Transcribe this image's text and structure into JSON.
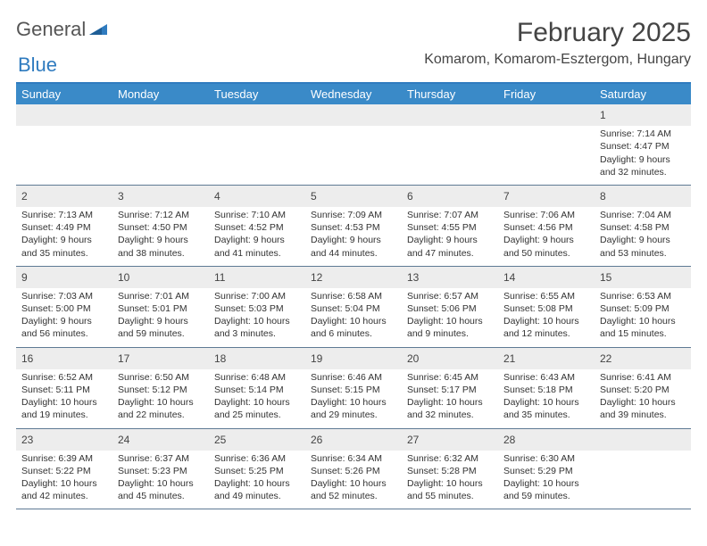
{
  "logo": {
    "general": "General",
    "blue": "Blue"
  },
  "title": "February 2025",
  "location": "Komarom, Komarom-Esztergom, Hungary",
  "colors": {
    "header_bg": "#3a8ac8",
    "header_text": "#ffffff",
    "daynum_bg": "#ededed",
    "rule": "#5e7a94",
    "accent": "#2f7bbf",
    "body_text": "#333333"
  },
  "day_headers": [
    "Sunday",
    "Monday",
    "Tuesday",
    "Wednesday",
    "Thursday",
    "Friday",
    "Saturday"
  ],
  "weeks": [
    [
      null,
      null,
      null,
      null,
      null,
      null,
      {
        "n": "1",
        "sr": "Sunrise: 7:14 AM",
        "ss": "Sunset: 4:47 PM",
        "dl": "Daylight: 9 hours and 32 minutes."
      }
    ],
    [
      {
        "n": "2",
        "sr": "Sunrise: 7:13 AM",
        "ss": "Sunset: 4:49 PM",
        "dl": "Daylight: 9 hours and 35 minutes."
      },
      {
        "n": "3",
        "sr": "Sunrise: 7:12 AM",
        "ss": "Sunset: 4:50 PM",
        "dl": "Daylight: 9 hours and 38 minutes."
      },
      {
        "n": "4",
        "sr": "Sunrise: 7:10 AM",
        "ss": "Sunset: 4:52 PM",
        "dl": "Daylight: 9 hours and 41 minutes."
      },
      {
        "n": "5",
        "sr": "Sunrise: 7:09 AM",
        "ss": "Sunset: 4:53 PM",
        "dl": "Daylight: 9 hours and 44 minutes."
      },
      {
        "n": "6",
        "sr": "Sunrise: 7:07 AM",
        "ss": "Sunset: 4:55 PM",
        "dl": "Daylight: 9 hours and 47 minutes."
      },
      {
        "n": "7",
        "sr": "Sunrise: 7:06 AM",
        "ss": "Sunset: 4:56 PM",
        "dl": "Daylight: 9 hours and 50 minutes."
      },
      {
        "n": "8",
        "sr": "Sunrise: 7:04 AM",
        "ss": "Sunset: 4:58 PM",
        "dl": "Daylight: 9 hours and 53 minutes."
      }
    ],
    [
      {
        "n": "9",
        "sr": "Sunrise: 7:03 AM",
        "ss": "Sunset: 5:00 PM",
        "dl": "Daylight: 9 hours and 56 minutes."
      },
      {
        "n": "10",
        "sr": "Sunrise: 7:01 AM",
        "ss": "Sunset: 5:01 PM",
        "dl": "Daylight: 9 hours and 59 minutes."
      },
      {
        "n": "11",
        "sr": "Sunrise: 7:00 AM",
        "ss": "Sunset: 5:03 PM",
        "dl": "Daylight: 10 hours and 3 minutes."
      },
      {
        "n": "12",
        "sr": "Sunrise: 6:58 AM",
        "ss": "Sunset: 5:04 PM",
        "dl": "Daylight: 10 hours and 6 minutes."
      },
      {
        "n": "13",
        "sr": "Sunrise: 6:57 AM",
        "ss": "Sunset: 5:06 PM",
        "dl": "Daylight: 10 hours and 9 minutes."
      },
      {
        "n": "14",
        "sr": "Sunrise: 6:55 AM",
        "ss": "Sunset: 5:08 PM",
        "dl": "Daylight: 10 hours and 12 minutes."
      },
      {
        "n": "15",
        "sr": "Sunrise: 6:53 AM",
        "ss": "Sunset: 5:09 PM",
        "dl": "Daylight: 10 hours and 15 minutes."
      }
    ],
    [
      {
        "n": "16",
        "sr": "Sunrise: 6:52 AM",
        "ss": "Sunset: 5:11 PM",
        "dl": "Daylight: 10 hours and 19 minutes."
      },
      {
        "n": "17",
        "sr": "Sunrise: 6:50 AM",
        "ss": "Sunset: 5:12 PM",
        "dl": "Daylight: 10 hours and 22 minutes."
      },
      {
        "n": "18",
        "sr": "Sunrise: 6:48 AM",
        "ss": "Sunset: 5:14 PM",
        "dl": "Daylight: 10 hours and 25 minutes."
      },
      {
        "n": "19",
        "sr": "Sunrise: 6:46 AM",
        "ss": "Sunset: 5:15 PM",
        "dl": "Daylight: 10 hours and 29 minutes."
      },
      {
        "n": "20",
        "sr": "Sunrise: 6:45 AM",
        "ss": "Sunset: 5:17 PM",
        "dl": "Daylight: 10 hours and 32 minutes."
      },
      {
        "n": "21",
        "sr": "Sunrise: 6:43 AM",
        "ss": "Sunset: 5:18 PM",
        "dl": "Daylight: 10 hours and 35 minutes."
      },
      {
        "n": "22",
        "sr": "Sunrise: 6:41 AM",
        "ss": "Sunset: 5:20 PM",
        "dl": "Daylight: 10 hours and 39 minutes."
      }
    ],
    [
      {
        "n": "23",
        "sr": "Sunrise: 6:39 AM",
        "ss": "Sunset: 5:22 PM",
        "dl": "Daylight: 10 hours and 42 minutes."
      },
      {
        "n": "24",
        "sr": "Sunrise: 6:37 AM",
        "ss": "Sunset: 5:23 PM",
        "dl": "Daylight: 10 hours and 45 minutes."
      },
      {
        "n": "25",
        "sr": "Sunrise: 6:36 AM",
        "ss": "Sunset: 5:25 PM",
        "dl": "Daylight: 10 hours and 49 minutes."
      },
      {
        "n": "26",
        "sr": "Sunrise: 6:34 AM",
        "ss": "Sunset: 5:26 PM",
        "dl": "Daylight: 10 hours and 52 minutes."
      },
      {
        "n": "27",
        "sr": "Sunrise: 6:32 AM",
        "ss": "Sunset: 5:28 PM",
        "dl": "Daylight: 10 hours and 55 minutes."
      },
      {
        "n": "28",
        "sr": "Sunrise: 6:30 AM",
        "ss": "Sunset: 5:29 PM",
        "dl": "Daylight: 10 hours and 59 minutes."
      },
      null
    ]
  ]
}
